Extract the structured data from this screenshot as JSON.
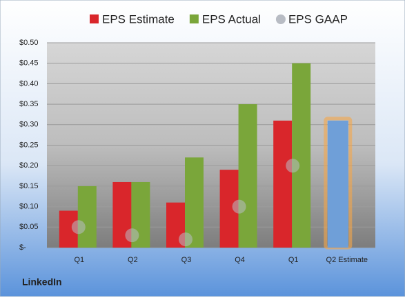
{
  "chart_data": {
    "type": "bar",
    "title": "LinkedIn",
    "categories": [
      "Q1",
      "Q2",
      "Q3",
      "Q4",
      "Q1",
      "Q2 Estimate"
    ],
    "series": [
      {
        "name": "EPS Estimate",
        "color": "#d9262b",
        "values": [
          0.09,
          0.16,
          0.11,
          0.19,
          0.31,
          0.31
        ],
        "point_colors": [
          "#d9262b",
          "#d9262b",
          "#d9262b",
          "#d9262b",
          "#d9262b",
          "#6f9fd8"
        ]
      },
      {
        "name": "EPS Actual",
        "color": "#7aa63a",
        "values": [
          0.15,
          0.16,
          0.22,
          0.35,
          0.45,
          null
        ]
      },
      {
        "name": "EPS GAAP",
        "color": "#b8bcc4",
        "marker": "circle",
        "values": [
          0.05,
          0.03,
          0.02,
          0.1,
          0.2,
          null
        ]
      }
    ],
    "ylim": [
      0,
      0.5
    ],
    "yticks": [
      {
        "value": 0,
        "label": "$-"
      },
      {
        "value": 0.05,
        "label": "$0.05"
      },
      {
        "value": 0.1,
        "label": "$0.10"
      },
      {
        "value": 0.15,
        "label": "$0.15"
      },
      {
        "value": 0.2,
        "label": "$0.20"
      },
      {
        "value": 0.25,
        "label": "$0.25"
      },
      {
        "value": 0.3,
        "label": "$0.30"
      },
      {
        "value": 0.35,
        "label": "$0.35"
      },
      {
        "value": 0.4,
        "label": "$0.40"
      },
      {
        "value": 0.45,
        "label": "$0.45"
      },
      {
        "value": 0.5,
        "label": "$0.50"
      }
    ],
    "grid": true,
    "legend": "top"
  }
}
